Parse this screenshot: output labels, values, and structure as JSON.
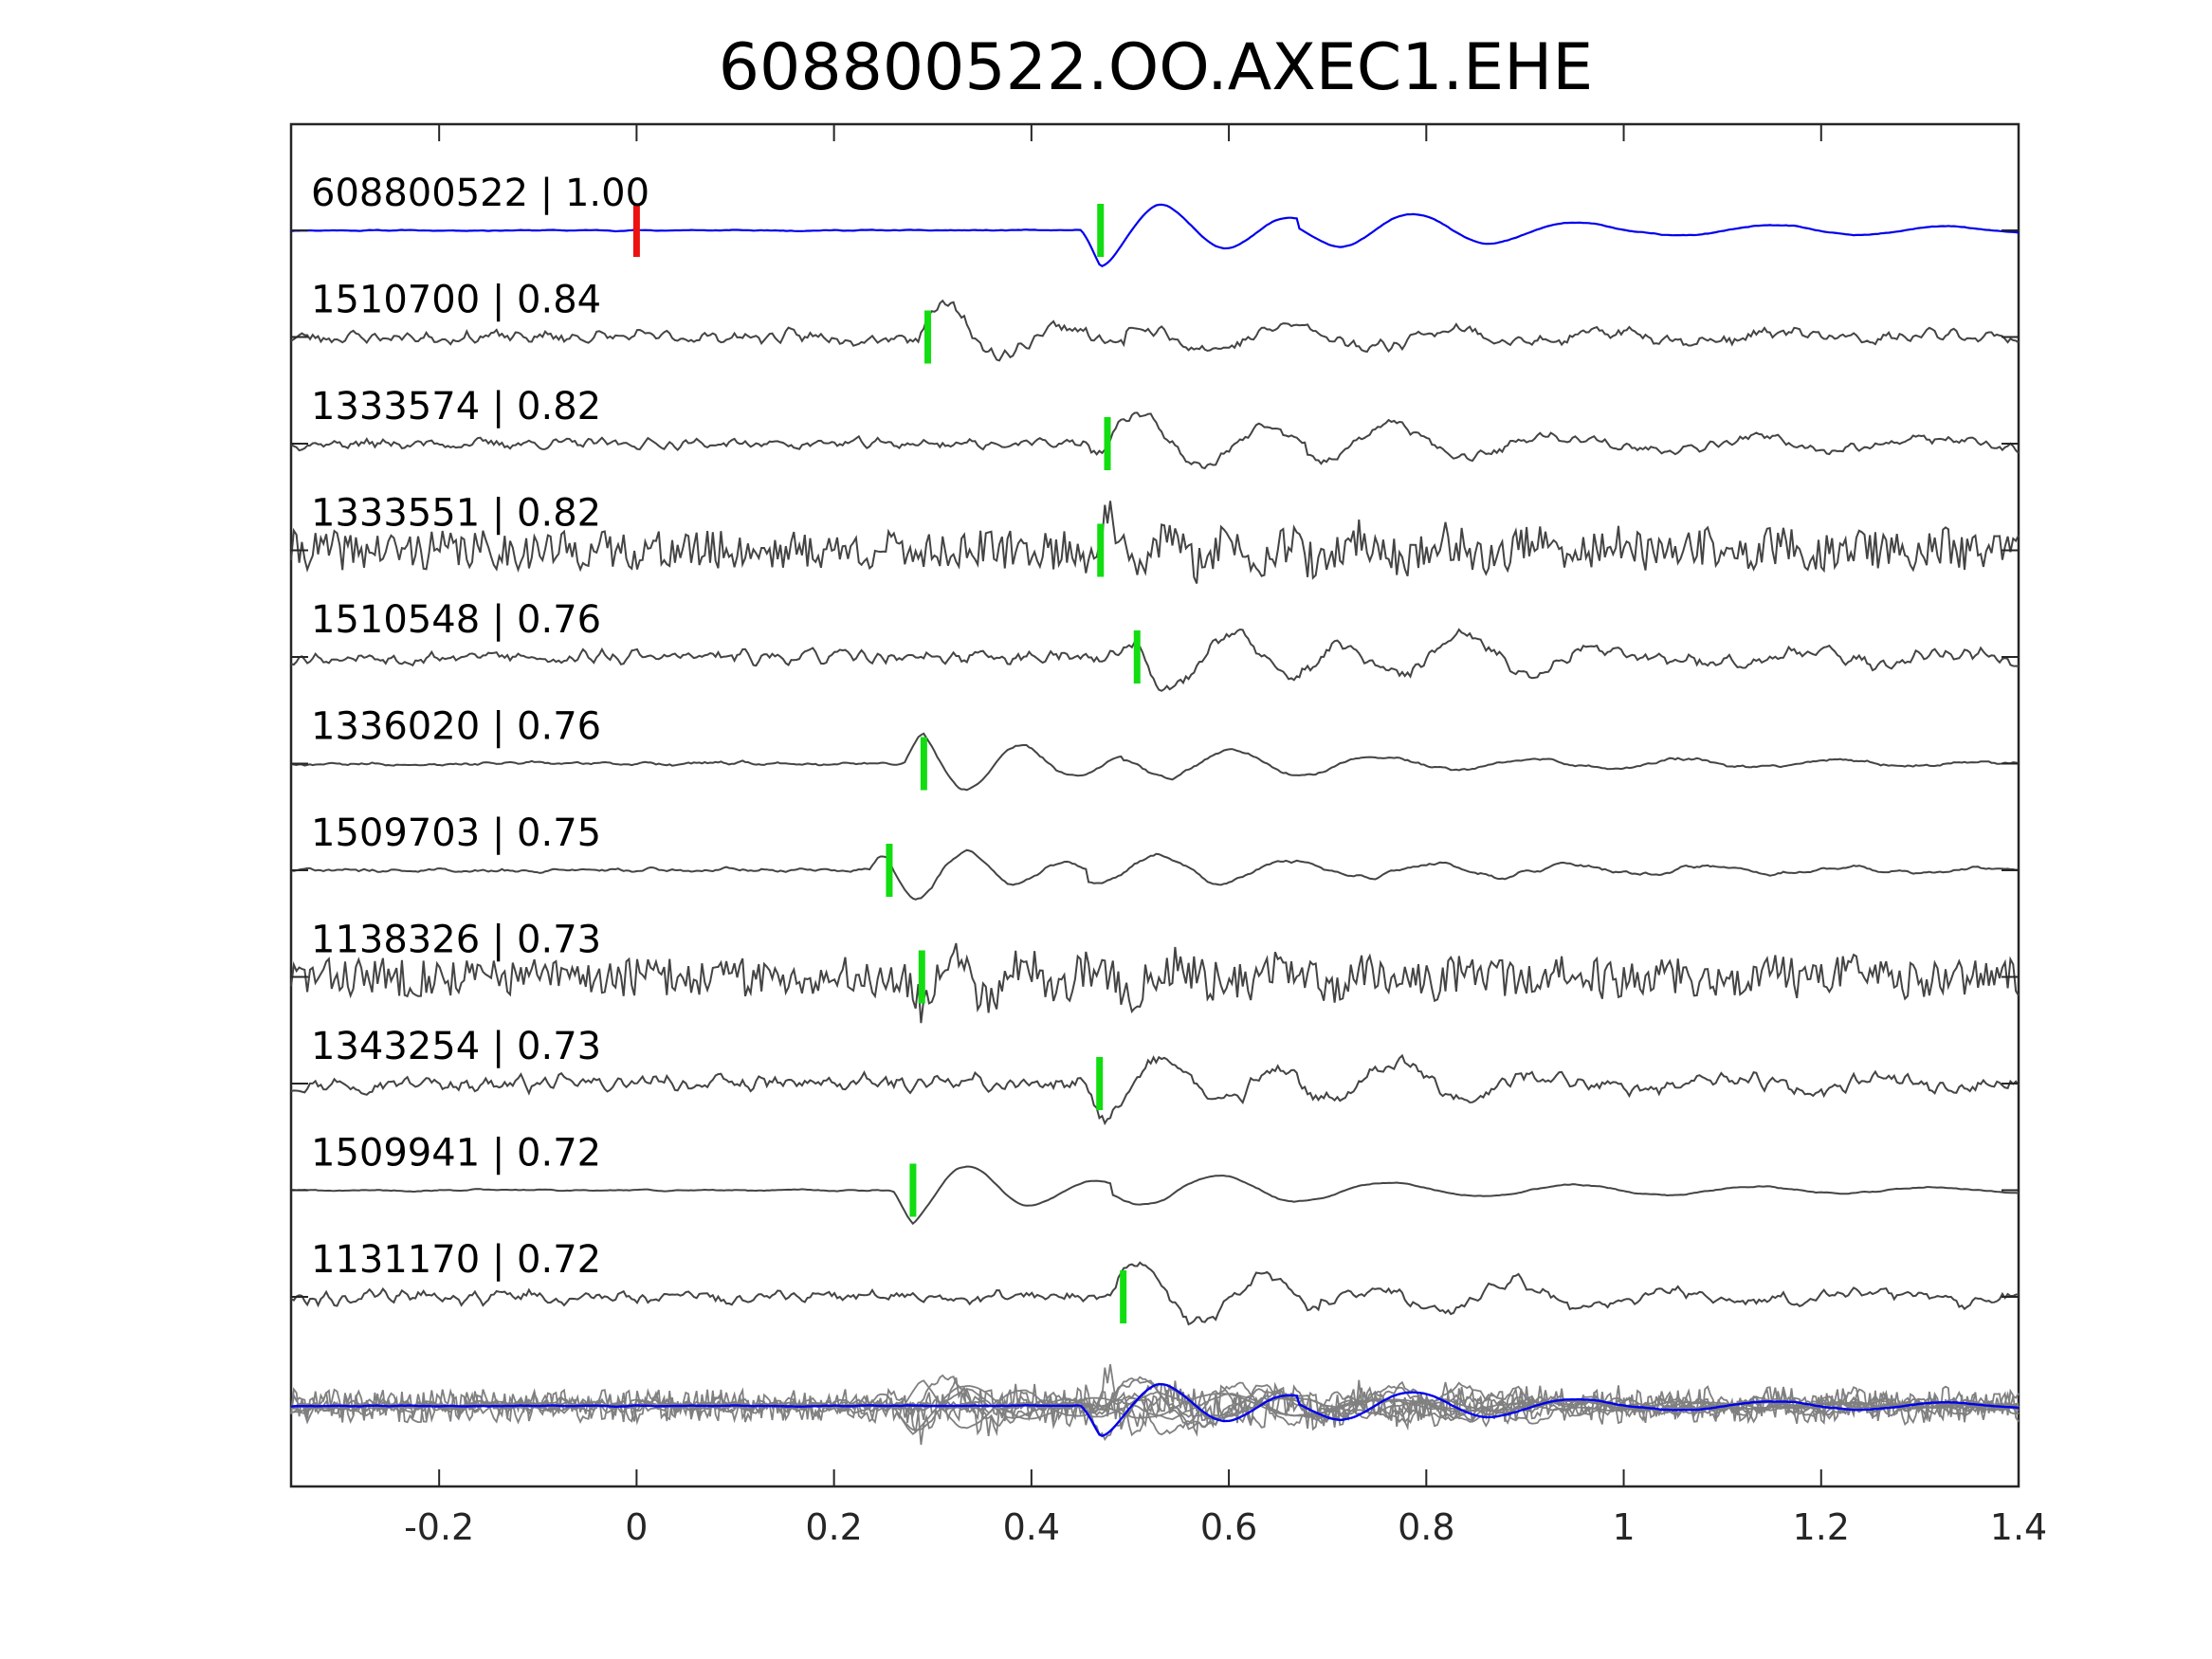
{
  "chart_data": {
    "type": "line",
    "title": "608800522.OO.AXEC1.EHE",
    "xlabel": "",
    "ylabel": "",
    "xlim": [
      -0.35,
      1.4
    ],
    "x_ticks": [
      -0.2,
      0,
      0.2,
      0.4,
      0.6,
      0.8,
      1,
      1.2,
      1.4
    ],
    "x_tick_labels": [
      "-0.2",
      "0",
      "0.2",
      "0.4",
      "0.6",
      "0.8",
      "1",
      "1.2",
      "1.4"
    ],
    "y_ticks_visible": false,
    "grid": false,
    "legend": "none",
    "colors": {
      "template": "#0000ee",
      "match": "#444444",
      "stack": "#808080",
      "reference_pick": "#ee1111",
      "match_pick": "#11dd11",
      "axes": "#262626"
    },
    "reference_pick_time": 0,
    "series": [
      {
        "label": "608800522 | 1.00",
        "role": "template",
        "pick_time": 0.47
      },
      {
        "label": "1510700 | 0.84",
        "role": "match",
        "pick_time": 0.295
      },
      {
        "label": "1333574 | 0.82",
        "role": "match",
        "pick_time": 0.477
      },
      {
        "label": "1333551 | 0.82",
        "role": "match",
        "pick_time": 0.47
      },
      {
        "label": "1510548 | 0.76",
        "role": "match",
        "pick_time": 0.507
      },
      {
        "label": "1336020 | 0.76",
        "role": "match",
        "pick_time": 0.291
      },
      {
        "label": "1509703 | 0.75",
        "role": "match",
        "pick_time": 0.256
      },
      {
        "label": "1138326 | 0.73",
        "role": "match",
        "pick_time": 0.289
      },
      {
        "label": "1343254 | 0.73",
        "role": "match",
        "pick_time": 0.469
      },
      {
        "label": "1509941 | 0.72",
        "role": "match",
        "pick_time": 0.28
      },
      {
        "label": "1131170 | 0.72",
        "role": "match",
        "pick_time": 0.493
      }
    ],
    "overlay": {
      "role": "stack",
      "description_hidden": true
    }
  }
}
